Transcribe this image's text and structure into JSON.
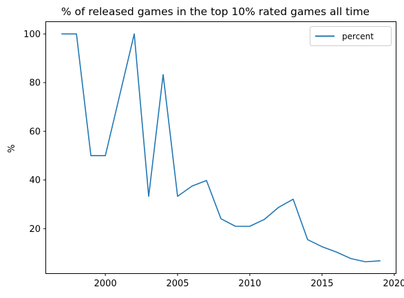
{
  "chart_data": {
    "type": "line",
    "title": "% of released games in the top 10% rated games all time",
    "xlabel": "",
    "ylabel": "%",
    "xlim": [
      1995.9,
      2020.1
    ],
    "ylim": [
      1.7,
      104.9
    ],
    "xticks": [
      2000,
      2005,
      2010,
      2015,
      2020
    ],
    "yticks": [
      20,
      40,
      60,
      80,
      100
    ],
    "grid": false,
    "legend_placement": "top-right",
    "series": [
      {
        "name": "percent",
        "color": "#1f77b4",
        "x": [
          1997,
          1998,
          1999,
          2000,
          2001,
          2002,
          2003,
          2004,
          2005,
          2006,
          2007,
          2008,
          2009,
          2010,
          2011,
          2012,
          2013,
          2014,
          2015,
          2016,
          2017,
          2018,
          2019
        ],
        "y": [
          100,
          100,
          50,
          50,
          75,
          100,
          33.3,
          83.3,
          33.3,
          37.5,
          39.8,
          24.1,
          21.0,
          21.0,
          23.8,
          28.8,
          32.1,
          15.5,
          12.6,
          10.4,
          7.7,
          6.4,
          6.8
        ]
      }
    ]
  }
}
